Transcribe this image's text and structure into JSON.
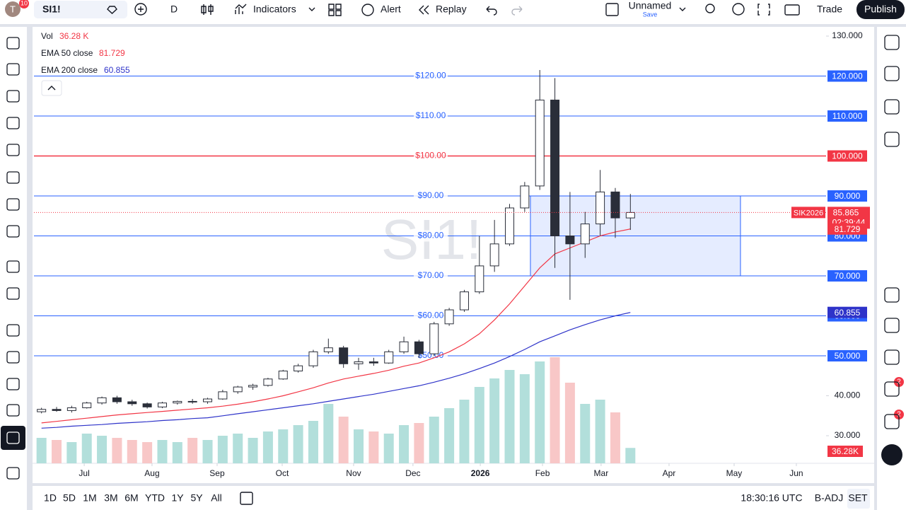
{
  "toolbar": {
    "avatar": "T",
    "avatar_badge": "10",
    "symbol": "SI1!",
    "interval": "D",
    "indicators": "Indicators",
    "alert": "Alert",
    "replay": "Replay",
    "layout_name": "Unnamed",
    "layout_save": "Save",
    "trade": "Trade",
    "publish": "Publish"
  },
  "bottom_bar": {
    "ranges": [
      "1D",
      "5D",
      "1M",
      "3M",
      "6M",
      "YTD",
      "1Y",
      "5Y",
      "All"
    ],
    "clock": "18:30:16 UTC",
    "adjust": "B-ADJ",
    "session": "SET"
  },
  "right_sidebar": {
    "badges": [
      "2",
      "2"
    ]
  },
  "chart_data": {
    "type": "candlestick",
    "watermark": "SI1!",
    "categories": [
      null,
      null,
      null,
      null,
      null,
      null,
      null,
      null,
      null,
      null,
      null,
      null,
      null,
      null,
      null,
      null,
      null,
      null,
      null,
      null,
      null,
      null,
      null,
      null,
      null,
      null,
      null,
      null,
      null,
      null,
      null,
      null,
      null,
      null,
      null,
      null,
      null,
      null,
      null,
      null
    ],
    "ohlc": {
      "name": "SIK2026",
      "countdown": "02:39:44",
      "up_color": "#ffffff",
      "down_color": "#2a2e39",
      "open": [
        36.0,
        36.6,
        36.3,
        37.0,
        38.2,
        39.5,
        38.5,
        38.0,
        37.2,
        38.2,
        38.6,
        38.5,
        39.2,
        41.0,
        42.2,
        42.6,
        44.2,
        46.2,
        47.5,
        51.0,
        52.0,
        48.0,
        48.5,
        48.2,
        51.0,
        53.5,
        50.5,
        58.0,
        61.5,
        66.0,
        72.5,
        78.0,
        87.0,
        92.5,
        114.0,
        80.0,
        78.0,
        83.0,
        91.0,
        84.5
      ],
      "high": [
        37.0,
        37.2,
        37.5,
        38.5,
        39.8,
        40.0,
        39.0,
        38.3,
        38.5,
        38.8,
        39.2,
        39.5,
        41.5,
        42.5,
        43.0,
        44.5,
        46.5,
        48.0,
        51.5,
        54.3,
        52.5,
        49.5,
        49.5,
        51.5,
        54.8,
        54.0,
        58.5,
        62.0,
        66.5,
        80.0,
        84.0,
        88.0,
        93.5,
        121.5,
        119.5,
        91.0,
        86.0,
        96.5,
        92.0,
        90.5
      ],
      "low": [
        35.6,
        36.0,
        35.8,
        36.8,
        37.8,
        38.0,
        37.5,
        36.8,
        36.9,
        37.8,
        38.0,
        38.0,
        39.0,
        40.5,
        41.5,
        42.3,
        44.0,
        45.8,
        47.0,
        50.5,
        47.0,
        46.5,
        47.5,
        48.0,
        50.5,
        49.5,
        50.0,
        57.5,
        61.0,
        65.5,
        71.0,
        77.5,
        86.0,
        91.5,
        72.0,
        64.0,
        74.5,
        80.0,
        79.5,
        81.5
      ],
      "close": [
        36.6,
        36.3,
        37.0,
        38.2,
        39.5,
        38.5,
        38.0,
        37.2,
        38.2,
        38.6,
        38.5,
        39.2,
        41.0,
        42.2,
        42.6,
        44.2,
        46.2,
        47.5,
        51.0,
        52.0,
        48.0,
        48.5,
        48.2,
        51.0,
        53.5,
        50.5,
        58.0,
        61.5,
        66.0,
        72.5,
        78.0,
        87.0,
        92.5,
        114.0,
        80.0,
        78.0,
        83.0,
        91.0,
        84.5,
        85.865
      ]
    },
    "series": [
      {
        "name": "EMA 50 close",
        "color": "#f23645",
        "values": [
          33.2,
          33.6,
          34.0,
          34.4,
          34.8,
          35.2,
          35.5,
          35.8,
          36.1,
          36.4,
          36.7,
          37.0,
          37.4,
          37.9,
          38.5,
          39.2,
          40.0,
          41.0,
          42.0,
          43.2,
          44.2,
          44.9,
          45.6,
          46.4,
          47.4,
          48.2,
          49.5,
          51.0,
          53.0,
          55.5,
          59.0,
          63.0,
          67.5,
          72.0,
          75.5,
          77.0,
          78.5,
          80.0,
          81.0,
          81.729
        ]
      },
      {
        "name": "EMA 200 close",
        "color": "#2e33c9",
        "values": [
          31.9,
          32.1,
          32.4,
          32.6,
          32.8,
          33.1,
          33.3,
          33.5,
          33.8,
          34.0,
          34.3,
          34.5,
          35.0,
          35.5,
          36.0,
          36.5,
          37.0,
          37.5,
          38.0,
          38.6,
          39.2,
          39.8,
          40.4,
          41.1,
          41.8,
          42.5,
          43.4,
          44.4,
          45.5,
          46.8,
          48.2,
          49.8,
          51.6,
          53.5,
          55.0,
          56.5,
          57.8,
          59.0,
          60.0,
          60.855
        ]
      }
    ],
    "volume": {
      "name": "Vol",
      "value_label": "36.28 K",
      "badge_label": "36.28K",
      "up_color": "#b2dfdb",
      "down_color": "#f8c7c7",
      "vol_ylim": [
        0,
        250
      ],
      "values": [
        60,
        55,
        50,
        70,
        65,
        60,
        55,
        50,
        55,
        50,
        60,
        55,
        65,
        70,
        60,
        75,
        80,
        90,
        100,
        140,
        110,
        80,
        75,
        70,
        90,
        95,
        110,
        130,
        150,
        180,
        200,
        220,
        210,
        240,
        250,
        190,
        140,
        150,
        120,
        36.28
      ]
    },
    "xlim": [
      -0.5,
      51.96
    ],
    "xticks": [
      {
        "value": 2.83,
        "label": "Jul"
      },
      {
        "value": 7.32,
        "label": "Aug"
      },
      {
        "value": 11.63,
        "label": "Sep"
      },
      {
        "value": 15.94,
        "label": "Oct"
      },
      {
        "value": 20.67,
        "label": "Nov"
      },
      {
        "value": 24.6,
        "label": "Dec"
      },
      {
        "value": 29.06,
        "label": "2026"
      },
      {
        "value": 33.18,
        "label": "Feb"
      },
      {
        "value": 37.06,
        "label": "Mar"
      },
      {
        "value": 41.56,
        "label": "Apr"
      },
      {
        "value": 45.87,
        "label": "May"
      },
      {
        "value": 49.99,
        "label": "Jun"
      }
    ],
    "ylim": [
      23.1,
      131.95
    ],
    "yticks": [
      {
        "value": 130,
        "label": "130.000"
      },
      {
        "value": 40,
        "label": "40.000"
      },
      {
        "value": 30,
        "label": "30.000"
      }
    ],
    "hlines": [
      {
        "value": 120,
        "label": "$120.00",
        "axis_label": "120.000",
        "color": "#2962ff"
      },
      {
        "value": 110,
        "label": "$110.00",
        "axis_label": "110.000",
        "color": "#2962ff"
      },
      {
        "value": 100,
        "label": "$100.00",
        "axis_label": "100.000",
        "color": "#f23645"
      },
      {
        "value": 90,
        "label": "$90.00",
        "axis_label": "90.000",
        "color": "#2962ff"
      },
      {
        "value": 80,
        "label": "$80.00",
        "axis_label": "80.000",
        "color": "#2962ff"
      },
      {
        "value": 70,
        "label": "$70.00",
        "axis_label": "70.000",
        "color": "#2962ff"
      },
      {
        "value": 60,
        "label": "$60.00",
        "axis_label": "60.000",
        "color": "#2962ff"
      },
      {
        "value": 50,
        "label": "$50.00",
        "axis_label": "50.000",
        "color": "#2962ff"
      }
    ],
    "box": {
      "x": [
        32.38,
        46.29
      ],
      "y": [
        70,
        90
      ],
      "color": "#2962ff"
    }
  }
}
